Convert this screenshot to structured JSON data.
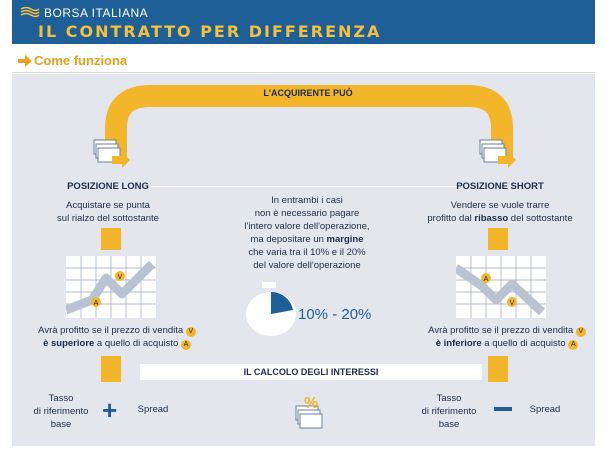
{
  "header": {
    "brand": "BORSA ITALIANA",
    "title": "IL CONTRATTO PER DIFFERENZA"
  },
  "section": {
    "title": "Come funziona"
  },
  "diagram": {
    "top_label": "L'ACQUIRENTE PUÒ",
    "long": {
      "title": "POSIZIONE LONG",
      "desc_line1": "Acquistare se punta",
      "desc_line2": "sul rialzo del sottostante",
      "profit_line1": "Avrà profitto se il prezzo di vendita",
      "profit_line2_bold": "è superiore",
      "profit_line2_rest": " a quello di acquisto"
    },
    "short": {
      "title": "POSIZIONE SHORT",
      "desc_line1": "Vendere se vuole trarre",
      "desc_line2_pre": "profitto dal ",
      "desc_line2_bold": "ribasso",
      "desc_line2_post": " del sottostante",
      "profit_line1": "Avrà profitto se il prezzo di vendita",
      "profit_line2_bold": "è inferiore",
      "profit_line2_rest": " a quello di acquisto"
    },
    "center": {
      "line1": "In entrambi i casi",
      "line2": "non è necessario pagare",
      "line3": "l'intero valore dell'operazione,",
      "line4_pre": "ma depositare un ",
      "line4_bold": "margine",
      "line5": "che varia tra il 10% e il 20%",
      "line6": "del valore dell'operazione",
      "margin_range": "10% - 20%"
    },
    "badges": {
      "sell": "V",
      "buy": "A"
    },
    "interest": {
      "title": "IL CALCOLO DEGLI INTERESSI",
      "left_line1": "Tasso",
      "left_line2": "di riferimento",
      "left_line3": "base",
      "left_op": "+",
      "left_spread": "Spread",
      "right_line1": "Tasso",
      "right_line2": "di riferimento",
      "right_line3": "base",
      "right_spread": "Spread",
      "percent_symbol": "%"
    },
    "colors": {
      "blue": "#1f5f97",
      "yellow": "#f3b52a",
      "panel": "#e3e7ed",
      "text": "#1b2d4a"
    },
    "icons": [
      "banknotes-icon",
      "arrow-right-icon",
      "line-chart-up-icon",
      "line-chart-down-icon",
      "piggy-bank-icon",
      "percent-documents-icon"
    ]
  }
}
